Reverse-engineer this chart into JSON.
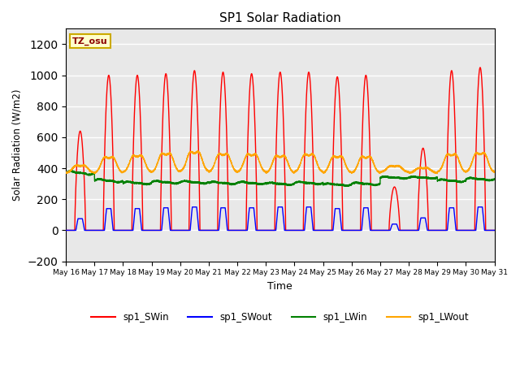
{
  "title": "SP1 Solar Radiation",
  "xlabel": "Time",
  "ylabel": "Solar Radiation (W/m2)",
  "ylim": [
    -200,
    1300
  ],
  "yticks": [
    -200,
    0,
    200,
    400,
    600,
    800,
    1000,
    1200
  ],
  "background_color": "#ffffff",
  "plot_bg_color": "#e8e8e8",
  "grid_color": "#ffffff",
  "colors": {
    "sp1_SWin": "red",
    "sp1_SWout": "blue",
    "sp1_LWin": "green",
    "sp1_LWout": "orange"
  },
  "legend_labels": [
    "sp1_SWin",
    "sp1_SWout",
    "sp1_LWin",
    "sp1_LWout"
  ],
  "tz_label": "TZ_osu",
  "n_days": 15,
  "start_day": 16
}
